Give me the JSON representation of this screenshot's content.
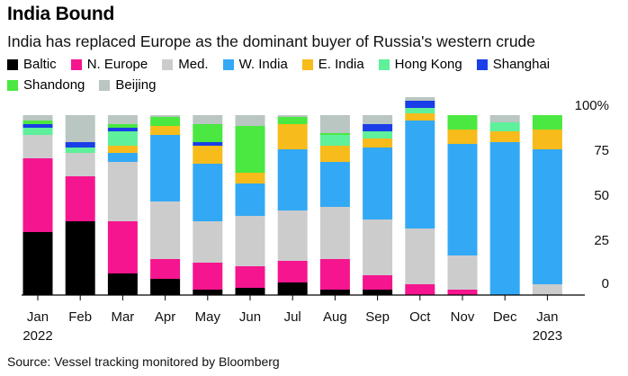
{
  "title": "India Bound",
  "subtitle": "India has replaced Europe as the dominant buyer of Russia's western crude",
  "source": "Source: Vessel tracking monitored by Bloomberg",
  "chart_data": {
    "type": "bar",
    "stacked": true,
    "title": "India Bound",
    "subtitle": "India has replaced Europe as the dominant buyer of Russia's western crude",
    "xlabel": "",
    "ylabel": "",
    "ylim": [
      0,
      100
    ],
    "yticks": [
      0,
      25,
      50,
      75,
      100
    ],
    "ytick_labels": [
      "0",
      "25",
      "50",
      "75",
      "100%"
    ],
    "categories": [
      "Jan",
      "Feb",
      "Mar",
      "Apr",
      "May",
      "Jun",
      "Jul",
      "Aug",
      "Sep",
      "Oct",
      "Nov",
      "Dec",
      "Jan"
    ],
    "year_labels": [
      {
        "index": 0,
        "label": "2022"
      },
      {
        "index": 12,
        "label": "2023"
      }
    ],
    "legend_position": "top",
    "series": [
      {
        "name": "Baltic",
        "color": "#000000",
        "values": [
          35,
          41,
          12,
          9,
          3,
          4,
          7,
          3,
          3,
          0,
          0,
          0,
          0
        ]
      },
      {
        "name": "N. Europe",
        "color": "#f5158e",
        "values": [
          41,
          25,
          29,
          11,
          15,
          12,
          12,
          17,
          8,
          6,
          3,
          0,
          0
        ]
      },
      {
        "name": "Med.",
        "color": "#cccccc",
        "values": [
          13,
          13,
          33,
          32,
          23,
          28,
          28,
          29,
          31,
          31,
          19,
          0,
          6
        ]
      },
      {
        "name": "W. India",
        "color": "#33a9f5",
        "values": [
          0,
          0,
          5,
          37,
          32,
          18,
          34,
          25,
          40,
          60,
          62,
          85,
          75
        ]
      },
      {
        "name": "E. India",
        "color": "#f7bb1b",
        "values": [
          0,
          0,
          4,
          5,
          10,
          6,
          14,
          9,
          5,
          4,
          8,
          6,
          11
        ]
      },
      {
        "name": "Hong Kong",
        "color": "#5ef09a",
        "values": [
          4,
          3,
          8,
          0,
          0,
          0,
          0,
          6,
          4,
          3,
          0,
          5,
          0
        ]
      },
      {
        "name": "Shanghai",
        "color": "#1a3ee8",
        "values": [
          2,
          3,
          2,
          0,
          2,
          0,
          0,
          0,
          4,
          4,
          0,
          0,
          0
        ]
      },
      {
        "name": "Shandong",
        "color": "#4ae840",
        "values": [
          2,
          0,
          2,
          5,
          10,
          26,
          4,
          1,
          0,
          0,
          8,
          0,
          8
        ]
      },
      {
        "name": "Beijing",
        "color": "#b9c6c1",
        "values": [
          3,
          15,
          5,
          1,
          5,
          6,
          1,
          10,
          5,
          2,
          0,
          4,
          0
        ]
      }
    ]
  }
}
